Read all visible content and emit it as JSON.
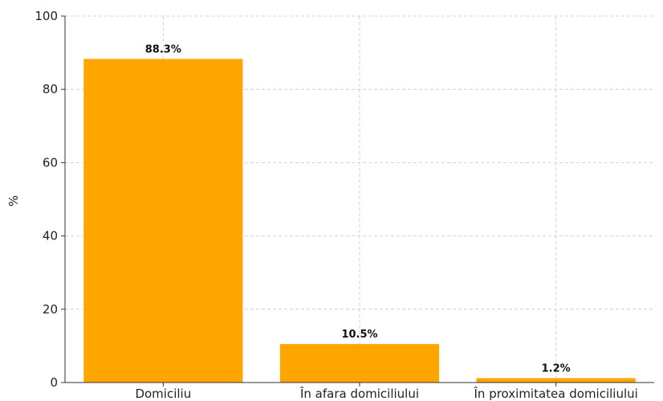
{
  "chart_data": {
    "type": "bar",
    "title": "",
    "xlabel": "",
    "ylabel": "%",
    "ylim": [
      0,
      100
    ],
    "yticks": [
      0,
      20,
      40,
      60,
      80,
      100
    ],
    "categories": [
      "Domiciliu",
      "În afara domiciliului",
      "În proximitatea domiciliului"
    ],
    "values": [
      88.3,
      10.5,
      1.2
    ],
    "data_labels": [
      "88.3%",
      "10.5%",
      "1.2%"
    ],
    "bar_color": "#FFA500",
    "grid": true,
    "legend": "none"
  }
}
